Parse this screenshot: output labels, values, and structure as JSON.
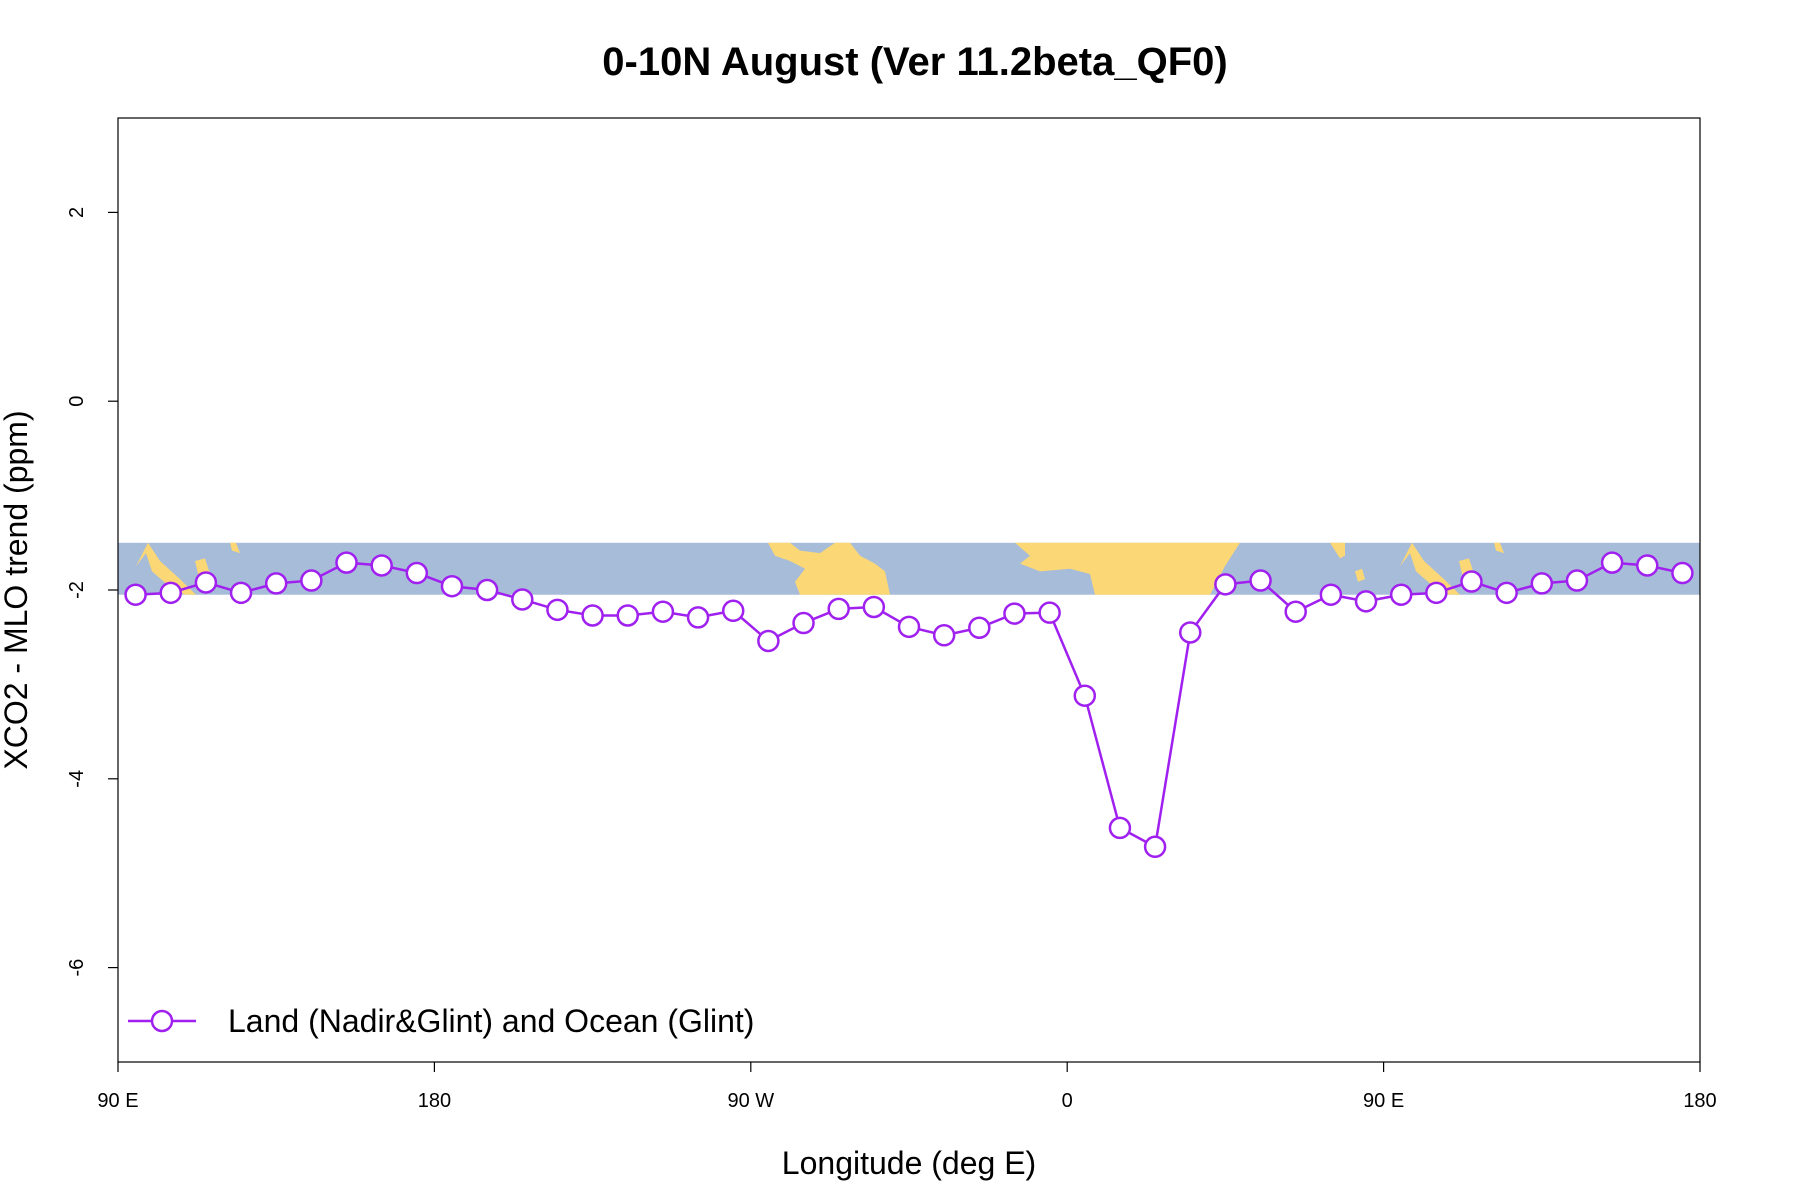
{
  "chart_data": {
    "type": "line",
    "title": "0-10N August (Ver 11.2beta_QF0)",
    "xlabel": "Longitude (deg E)",
    "ylabel": "XCO2 - MLO trend (ppm)",
    "xlim": [
      90,
      540
    ],
    "ylim": [
      -7,
      3
    ],
    "x_ticks": [
      {
        "value": 90,
        "label": "90 E"
      },
      {
        "value": 180,
        "label": "180"
      },
      {
        "value": 270,
        "label": "90 W"
      },
      {
        "value": 360,
        "label": "0"
      },
      {
        "value": 450,
        "label": "90 E"
      },
      {
        "value": 540,
        "label": "180"
      }
    ],
    "y_ticks": [
      {
        "value": 2,
        "label": "2"
      },
      {
        "value": 0,
        "label": "0"
      },
      {
        "value": -2,
        "label": "-2"
      },
      {
        "value": -4,
        "label": "-4"
      },
      {
        "value": -6,
        "label": "-6"
      }
    ],
    "background_map": {
      "y_top": -1.5,
      "y_bottom": -2.05,
      "ocean_color": "#a7bcd9",
      "land_color": "#fcd775"
    },
    "legend_position": "bottom-left",
    "series": [
      {
        "name": "Land (Nadir&Glint) and Ocean (Glint)",
        "color": "#a020f0",
        "marker": "open-circle",
        "x": [
          95,
          105,
          115,
          125,
          135,
          145,
          155,
          165,
          175,
          185,
          195,
          205,
          215,
          225,
          235,
          245,
          255,
          265,
          275,
          285,
          295,
          305,
          315,
          325,
          335,
          345,
          355,
          365,
          375,
          385,
          395,
          405,
          415,
          425,
          435,
          445,
          455,
          465,
          475,
          485,
          495,
          505,
          515,
          525,
          535
        ],
        "y": [
          -2.05,
          -2.03,
          -1.92,
          -2.03,
          -1.93,
          -1.9,
          -1.71,
          -1.74,
          -1.82,
          -1.96,
          -2.0,
          -2.1,
          -2.21,
          -2.27,
          -2.27,
          -2.23,
          -2.29,
          -2.22,
          -2.54,
          -2.35,
          -2.2,
          -2.18,
          -2.39,
          -2.48,
          -2.4,
          -2.25,
          -2.24,
          -3.12,
          -4.52,
          -4.72,
          -2.45,
          -1.94,
          -1.9,
          -2.23,
          -2.05,
          -2.12,
          -2.05,
          -2.03,
          -1.91,
          -2.03,
          -1.93,
          -1.9,
          -1.71,
          -1.74,
          -1.82
        ]
      }
    ]
  }
}
